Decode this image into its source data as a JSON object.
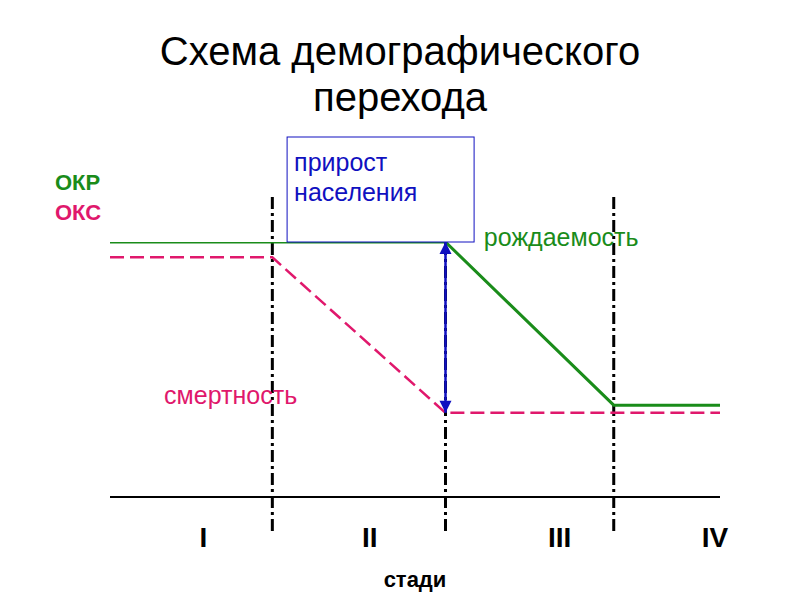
{
  "chart_data": {
    "type": "line",
    "title": "Схема демографического перехода",
    "x_label": "стади",
    "xlim": [
      0,
      6.2
    ],
    "ylim": [
      0,
      10
    ],
    "xticks": [
      {
        "value": 0.95,
        "label": "I"
      },
      {
        "value": 2.64,
        "label": "II"
      },
      {
        "value": 4.57,
        "label": "III"
      },
      {
        "value": 6.15,
        "label": "IV"
      }
    ],
    "yticks": [],
    "tick_labels": "x",
    "stage_boundaries": [
      1.65,
      3.41,
      5.12
    ],
    "legend": "top left",
    "series": [
      {
        "name": "ОКР",
        "color": "#1a8c1a",
        "line_style": "solid",
        "x": [
          0,
          3.41,
          5.12,
          6.2
        ],
        "values": [
          10,
          10,
          3.6,
          3.6
        ]
      },
      {
        "name": "ОКС",
        "color": "#e0186c",
        "line_style": "dashed",
        "x": [
          0,
          1.65,
          3.41,
          6.2
        ],
        "values": [
          9.4,
          9.4,
          3.3,
          3.3
        ]
      }
    ],
    "annotations": [
      {
        "text": "рождаемость",
        "x": 3.8,
        "y": 10.1,
        "color": "#1a8c1a"
      },
      {
        "text": "смертность",
        "x": 0.55,
        "y": 3.9,
        "color": "#e0186c"
      },
      {
        "text": "прирост населения",
        "x": 1.8,
        "y": 10,
        "color": "#1010c0",
        "arrow": {
          "x": 3.41,
          "from": 3.3,
          "to": 10
        }
      }
    ]
  }
}
